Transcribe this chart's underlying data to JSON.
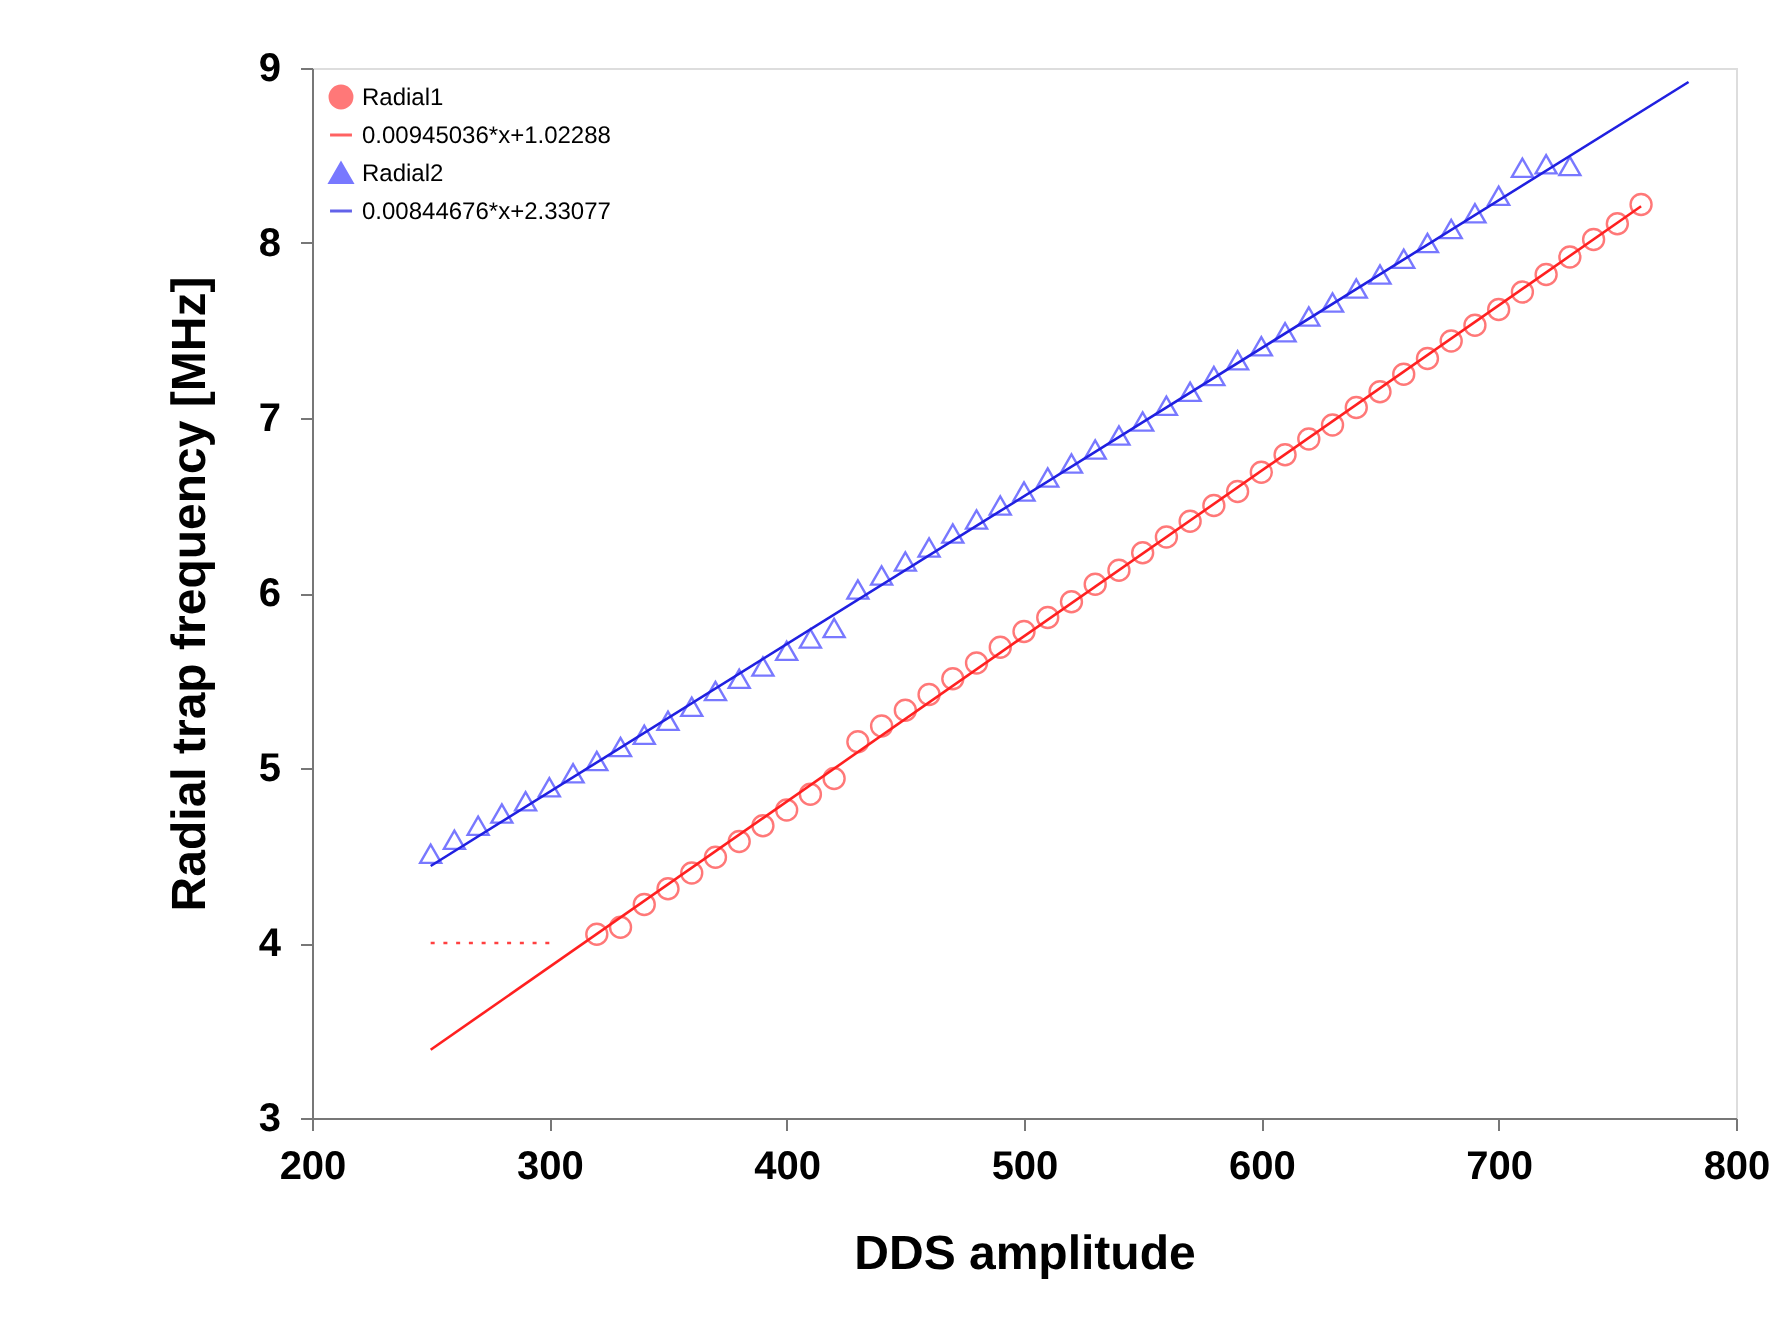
{
  "chart_data": {
    "type": "scatter",
    "xlabel": "DDS amplitude",
    "ylabel": "Radial trap frequency [MHz]",
    "xlim": [
      200,
      800
    ],
    "ylim": [
      3,
      9
    ],
    "xticks": [
      200,
      300,
      400,
      500,
      600,
      700,
      800
    ],
    "yticks": [
      3,
      4,
      5,
      6,
      7,
      8,
      9
    ],
    "grid": false,
    "legend": "top left",
    "series": [
      {
        "name": "Radial1",
        "marker": "circle",
        "color": "#ff4040",
        "x": [
          320,
          330,
          340,
          350,
          360,
          370,
          380,
          390,
          400,
          410,
          420,
          430,
          440,
          450,
          460,
          470,
          480,
          490,
          500,
          510,
          520,
          530,
          540,
          550,
          560,
          570,
          580,
          590,
          600,
          610,
          620,
          630,
          640,
          650,
          660,
          670,
          680,
          690,
          700,
          710,
          720,
          730,
          740,
          750,
          760
        ],
        "values": [
          4.05,
          4.09,
          4.22,
          4.31,
          4.4,
          4.49,
          4.58,
          4.67,
          4.76,
          4.85,
          4.94,
          5.15,
          5.24,
          5.33,
          5.42,
          5.51,
          5.6,
          5.69,
          5.78,
          5.86,
          5.95,
          6.05,
          6.13,
          6.23,
          6.32,
          6.41,
          6.5,
          6.58,
          6.69,
          6.79,
          6.88,
          6.96,
          7.06,
          7.15,
          7.25,
          7.34,
          7.44,
          7.53,
          7.62,
          7.72,
          7.82,
          7.92,
          8.02,
          8.11,
          8.22
        ]
      },
      {
        "name": "0.00945036*x+1.02288",
        "type": "line",
        "line_style": "solid",
        "color": "#ff2020",
        "x": [
          250,
          760
        ],
        "values": [
          3.39,
          8.21
        ]
      },
      {
        "name": "Radial2",
        "marker": "triangle",
        "color": "#4040ff",
        "x": [
          250,
          260,
          270,
          280,
          290,
          300,
          310,
          320,
          330,
          340,
          350,
          360,
          370,
          380,
          390,
          400,
          410,
          420,
          430,
          440,
          450,
          460,
          470,
          480,
          490,
          500,
          510,
          520,
          530,
          540,
          550,
          560,
          570,
          580,
          590,
          600,
          610,
          620,
          630,
          640,
          650,
          660,
          670,
          680,
          690,
          700,
          710,
          720,
          730
        ],
        "values": [
          4.51,
          4.59,
          4.67,
          4.74,
          4.81,
          4.89,
          4.97,
          5.04,
          5.12,
          5.19,
          5.27,
          5.35,
          5.44,
          5.51,
          5.58,
          5.67,
          5.74,
          5.8,
          6.02,
          6.1,
          6.18,
          6.26,
          6.34,
          6.42,
          6.5,
          6.58,
          6.66,
          6.74,
          6.82,
          6.9,
          6.98,
          7.07,
          7.15,
          7.24,
          7.33,
          7.41,
          7.49,
          7.58,
          7.66,
          7.74,
          7.82,
          7.91,
          8.0,
          8.08,
          8.17,
          8.27,
          8.43,
          8.45,
          8.44
        ]
      },
      {
        "name": "0.00844676*x+2.33077",
        "type": "line",
        "line_style": "solid",
        "color": "#2020e0",
        "x": [
          250,
          780
        ],
        "values": [
          4.44,
          8.92
        ]
      },
      {
        "type": "line",
        "line_style": "dotted",
        "color": "#ff4040",
        "x": [
          250,
          300
        ],
        "values": [
          4.0,
          4.0
        ]
      }
    ]
  }
}
